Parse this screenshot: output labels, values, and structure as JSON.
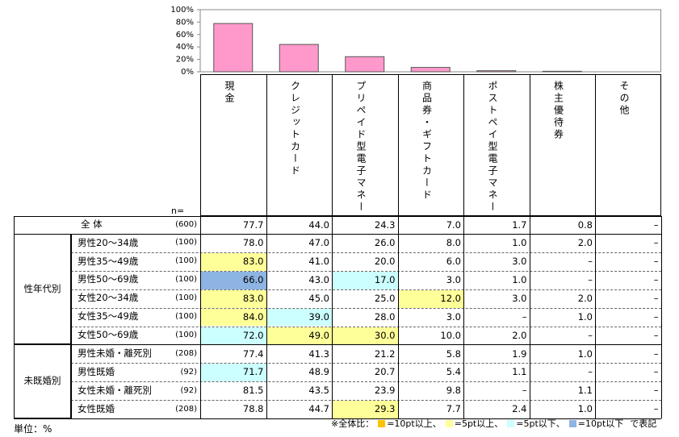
{
  "chart_data": {
    "type": "bar",
    "values": [
      77.7,
      44.0,
      24.3,
      7.0,
      1.7,
      0.8,
      null
    ],
    "color": "#ff99cc",
    "ylim": [
      0,
      100
    ],
    "yticks": [
      {
        "value": 0,
        "label": "0%"
      },
      {
        "value": 20,
        "label": "20%"
      },
      {
        "value": 40,
        "label": "40%"
      },
      {
        "value": 60,
        "label": "60%"
      },
      {
        "value": 80,
        "label": "80%"
      },
      {
        "value": 100,
        "label": "100%"
      }
    ]
  },
  "table": {
    "n_label": "n=",
    "columns": [
      "現金",
      "クレジットカード",
      "プリペイド型電子マネー",
      "商品券・ギフトカード",
      "ポストペイ型電子マネー",
      "株主優待券",
      "その他"
    ],
    "total": {
      "label": "全 体",
      "n": "(600)",
      "values": [
        "77.7",
        "44.0",
        "24.3",
        "7.0",
        "1.7",
        "0.8",
        "–"
      ]
    },
    "groups": [
      {
        "label": "性年代別",
        "rows": [
          {
            "label": "男性20～34歳",
            "n": "(100)",
            "values": [
              "78.0",
              "47.0",
              "26.0",
              "8.0",
              "1.0",
              "2.0",
              "–"
            ],
            "shade": [
              null,
              null,
              null,
              null,
              null,
              null,
              null
            ]
          },
          {
            "label": "男性35～49歳",
            "n": "(100)",
            "values": [
              "83.0",
              "41.0",
              "20.0",
              "6.0",
              "3.0",
              "–",
              "–"
            ],
            "shade": [
              1,
              null,
              null,
              null,
              null,
              null,
              null
            ]
          },
          {
            "label": "男性50～69歳",
            "n": "(100)",
            "values": [
              "66.0",
              "43.0",
              "17.0",
              "3.0",
              "1.0",
              "–",
              "–"
            ],
            "shade": [
              3,
              null,
              2,
              null,
              null,
              null,
              null
            ]
          },
          {
            "label": "女性20～34歳",
            "n": "(100)",
            "values": [
              "83.0",
              "45.0",
              "25.0",
              "12.0",
              "3.0",
              "2.0",
              "–"
            ],
            "shade": [
              1,
              null,
              null,
              1,
              null,
              null,
              null
            ]
          },
          {
            "label": "女性35～49歳",
            "n": "(100)",
            "values": [
              "84.0",
              "39.0",
              "28.0",
              "3.0",
              "–",
              "1.0",
              "–"
            ],
            "shade": [
              1,
              2,
              null,
              null,
              null,
              null,
              null
            ]
          },
          {
            "label": "女性50～69歳",
            "n": "(100)",
            "values": [
              "72.0",
              "49.0",
              "30.0",
              "10.0",
              "2.0",
              "–",
              "–"
            ],
            "shade": [
              2,
              1,
              1,
              null,
              null,
              null,
              null
            ]
          }
        ]
      },
      {
        "label": "未既婚別",
        "rows": [
          {
            "label": "男性未婚・離死別",
            "n": "(208)",
            "values": [
              "77.4",
              "41.3",
              "21.2",
              "5.8",
              "1.9",
              "1.0",
              "–"
            ],
            "shade": [
              null,
              null,
              null,
              null,
              null,
              null,
              null
            ]
          },
          {
            "label": "男性既婚",
            "n": "(92)",
            "values": [
              "71.7",
              "48.9",
              "20.7",
              "5.4",
              "1.1",
              "–",
              "–"
            ],
            "shade": [
              2,
              null,
              null,
              null,
              null,
              null,
              null
            ]
          },
          {
            "label": "女性未婚・離死別",
            "n": "(92)",
            "values": [
              "81.5",
              "43.5",
              "23.9",
              "9.8",
              "–",
              "1.1",
              "–"
            ],
            "shade": [
              null,
              null,
              null,
              null,
              null,
              null,
              null
            ]
          },
          {
            "label": "女性既婚",
            "n": "(208)",
            "values": [
              "78.8",
              "44.7",
              "29.3",
              "7.7",
              "2.4",
              "1.0",
              "–"
            ],
            "shade": [
              null,
              null,
              1,
              null,
              null,
              null,
              null
            ]
          }
        ]
      }
    ],
    "unit": "単位：%",
    "legend": {
      "prefix": "※全体比：",
      "items": [
        {
          "color": "#ffc000",
          "label": "=10pt以上、"
        },
        {
          "color": "#ffff99",
          "label": "=5pt以上、"
        },
        {
          "color": "#ccffff",
          "label": "=5pt以下、"
        },
        {
          "color": "#8db4e2",
          "label": "=10pt以下"
        }
      ],
      "suffix": "で表記"
    }
  }
}
